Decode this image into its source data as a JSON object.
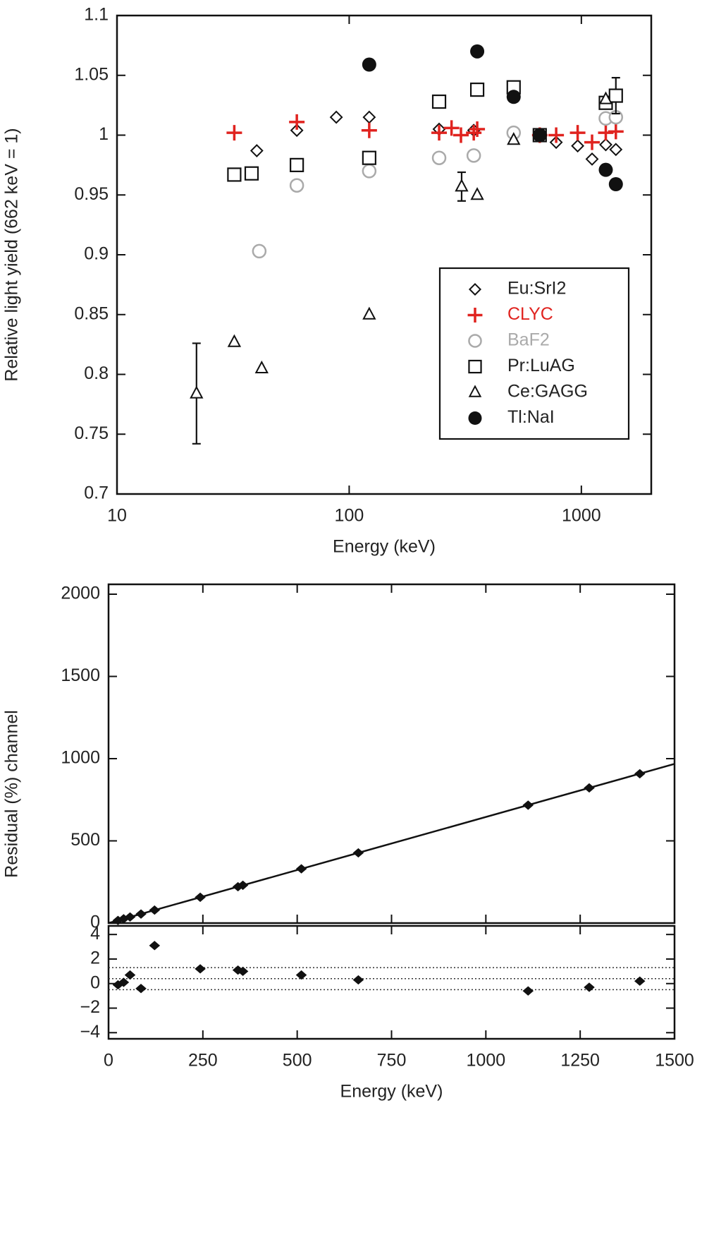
{
  "chart_data": [
    {
      "type": "scatter",
      "xlabel": "Energy (keV)",
      "ylabel": "Relative light yield (662 keV = 1)",
      "xscale": "log",
      "xlim": [
        10,
        2000
      ],
      "ylim": [
        0.7,
        1.1
      ],
      "xticks": [
        10,
        100,
        1000
      ],
      "yticks": [
        0.7,
        0.75,
        0.8,
        0.85,
        0.9,
        0.95,
        1,
        1.05,
        1.1
      ],
      "legend": "lower right",
      "series": [
        {
          "name": "Eu:SrI2",
          "marker": "diamond",
          "color": "#111111",
          "x": [
            40,
            59.5,
            88,
            122,
            244,
            344,
            779,
            964,
            1112,
            1274,
            1408
          ],
          "values": [
            0.987,
            1.004,
            1.015,
            1.015,
            1.005,
            1.004,
            0.994,
            0.991,
            0.98,
            0.992,
            0.988
          ]
        },
        {
          "name": "CLYC",
          "marker": "plus",
          "color": "#e0231f",
          "x": [
            32,
            59.5,
            122,
            244,
            276,
            303,
            344,
            356,
            662,
            779,
            964,
            1112,
            1274,
            1408
          ],
          "values": [
            1.002,
            1.011,
            1.004,
            1.002,
            1.006,
            1.0,
            1.002,
            1.005,
            1.0,
            1.0,
            1.002,
            0.994,
            1.002,
            1.003
          ]
        },
        {
          "name": "BaF2",
          "marker": "circle",
          "color": "#aaaaaa",
          "x": [
            41,
            59.5,
            122,
            244,
            344,
            511,
            1274,
            1408
          ],
          "values": [
            0.903,
            0.958,
            0.97,
            0.981,
            0.983,
            1.002,
            1.014,
            1.015
          ]
        },
        {
          "name": "Pr:LuAG",
          "marker": "square",
          "color": "#111111",
          "x": [
            32,
            38,
            59.5,
            122,
            244,
            356,
            511,
            662,
            1274,
            1408
          ],
          "values": [
            0.967,
            0.968,
            0.975,
            0.981,
            1.028,
            1.038,
            1.04,
            1.0,
            1.027,
            1.033
          ],
          "errors": [
            null,
            null,
            null,
            null,
            null,
            null,
            null,
            null,
            null,
            0.015
          ]
        },
        {
          "name": "Ce:GAGG",
          "marker": "triangle",
          "color": "#111111",
          "x": [
            22,
            32,
            42,
            122,
            305,
            356,
            511,
            1274
          ],
          "values": [
            0.784,
            0.827,
            0.805,
            0.85,
            0.957,
            0.95,
            0.996,
            1.03
          ],
          "errors": [
            0.042,
            null,
            null,
            null,
            0.012,
            null,
            null,
            null
          ]
        },
        {
          "name": "Tl:NaI",
          "marker": "dot",
          "color": "#111111",
          "x": [
            122,
            356,
            511,
            662,
            1274,
            1408
          ],
          "values": [
            1.059,
            1.07,
            1.032,
            1.0,
            0.971,
            0.959
          ]
        }
      ]
    },
    {
      "type": "scatter",
      "ylabel": "Residual (%) channel",
      "xlim": [
        0,
        1500
      ],
      "ylim": [
        0,
        2060
      ],
      "yticks": [
        0,
        500,
        1000,
        1500,
        2000
      ],
      "color": "#111111",
      "x": [
        25,
        40,
        57,
        86,
        122,
        243,
        343,
        356,
        511,
        662,
        1112,
        1274,
        1408
      ],
      "values": [
        16,
        26,
        37,
        55,
        79,
        157,
        221,
        230,
        330,
        427,
        717,
        822,
        908
      ],
      "fit": {
        "x": [
          0,
          1500
        ],
        "values": [
          0,
          968
        ]
      }
    },
    {
      "type": "scatter",
      "xlabel": "Energy (keV)",
      "xlim": [
        0,
        1500
      ],
      "ylim": [
        -4.5,
        4.7
      ],
      "xticks": [
        0,
        250,
        500,
        750,
        1000,
        1250,
        1500
      ],
      "yticks": [
        {
          "value": -4,
          "label": "−4"
        },
        {
          "value": -2,
          "label": "−2"
        },
        0,
        2,
        4
      ],
      "hlines": [
        1.3,
        0.4,
        -0.5
      ],
      "color": "#111111",
      "x": [
        25,
        40,
        57,
        86,
        122,
        243,
        343,
        356,
        511,
        662,
        1112,
        1274,
        1408
      ],
      "values": [
        -0.1,
        0.1,
        0.7,
        -0.4,
        3.1,
        1.2,
        1.1,
        1.0,
        0.7,
        0.3,
        -0.6,
        -0.3,
        0.2
      ]
    }
  ]
}
